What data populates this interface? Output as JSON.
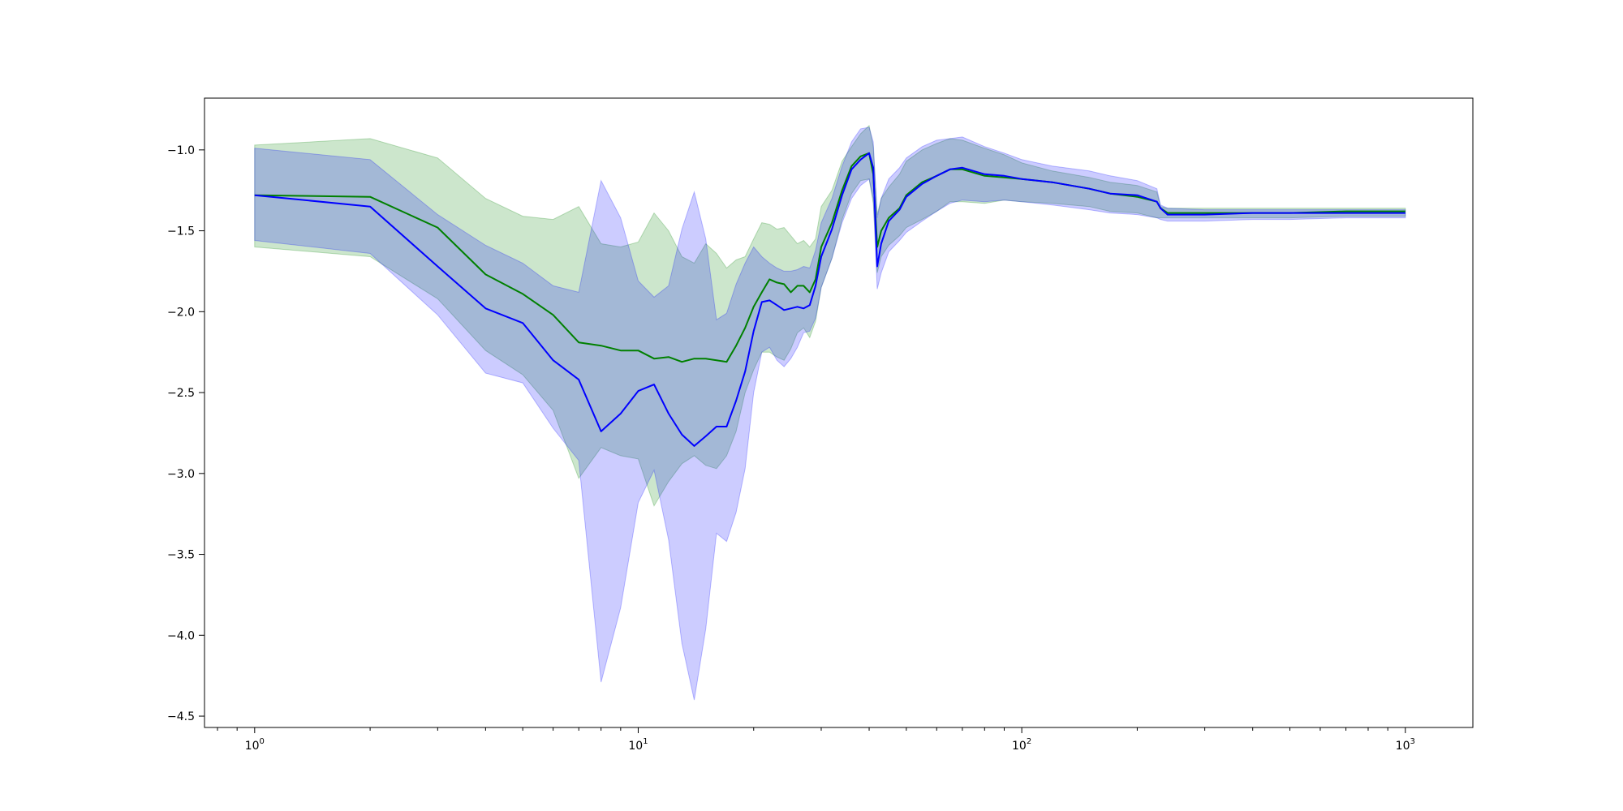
{
  "chart_data": {
    "type": "line",
    "x_scale": "log",
    "xlim": [
      0.74,
      1500
    ],
    "ylim": [
      -4.57,
      -0.68
    ],
    "grid": false,
    "title": "",
    "xlabel": "",
    "ylabel": "",
    "x_tick_labels": [
      {
        "value": 1,
        "base": "10",
        "exp": "0"
      },
      {
        "value": 10,
        "base": "10",
        "exp": "1"
      },
      {
        "value": 100,
        "base": "10",
        "exp": "2"
      },
      {
        "value": 1000,
        "base": "10",
        "exp": "3"
      }
    ],
    "y_tick_labels": [
      {
        "value": -1.0,
        "label": "−1.0"
      },
      {
        "value": -1.5,
        "label": "−1.5"
      },
      {
        "value": -2.0,
        "label": "−2.0"
      },
      {
        "value": -2.5,
        "label": "−2.5"
      },
      {
        "value": -3.0,
        "label": "−3.0"
      },
      {
        "value": -3.5,
        "label": "−3.5"
      },
      {
        "value": -4.0,
        "label": "−4.0"
      },
      {
        "value": -4.5,
        "label": "−4.5"
      }
    ],
    "series": [
      {
        "color": "#008000",
        "band_color": "#008000",
        "band_opacity": 0.2,
        "x": [
          1,
          2,
          3,
          4,
          5,
          6,
          7,
          8,
          9,
          10,
          11,
          12,
          13,
          14,
          15,
          16,
          17,
          18,
          19,
          20,
          21,
          22,
          23,
          24,
          25,
          26,
          27,
          28,
          29,
          30,
          32,
          34,
          36,
          38,
          40,
          41,
          42,
          43,
          45,
          48,
          50,
          55,
          60,
          65,
          70,
          80,
          90,
          100,
          120,
          150,
          170,
          200,
          225,
          230,
          240,
          300,
          400,
          500,
          700,
          1000
        ],
        "y": [
          -1.28,
          -1.29,
          -1.48,
          -1.77,
          -1.89,
          -2.02,
          -2.19,
          -2.21,
          -2.24,
          -2.24,
          -2.29,
          -2.28,
          -2.31,
          -2.29,
          -2.29,
          -2.3,
          -2.31,
          -2.21,
          -2.1,
          -1.97,
          -1.88,
          -1.8,
          -1.82,
          -1.83,
          -1.88,
          -1.84,
          -1.84,
          -1.88,
          -1.8,
          -1.6,
          -1.45,
          -1.25,
          -1.1,
          -1.04,
          -1.02,
          -1.15,
          -1.6,
          -1.5,
          -1.42,
          -1.36,
          -1.28,
          -1.2,
          -1.16,
          -1.12,
          -1.12,
          -1.16,
          -1.17,
          -1.18,
          -1.2,
          -1.24,
          -1.27,
          -1.29,
          -1.32,
          -1.36,
          -1.39,
          -1.39,
          -1.39,
          -1.39,
          -1.38,
          -1.38
        ],
        "upper": [
          -0.97,
          -0.93,
          -1.05,
          -1.3,
          -1.41,
          -1.43,
          -1.35,
          -1.58,
          -1.6,
          -1.57,
          -1.39,
          -1.5,
          -1.66,
          -1.7,
          -1.58,
          -1.64,
          -1.73,
          -1.68,
          -1.66,
          -1.55,
          -1.45,
          -1.46,
          -1.49,
          -1.48,
          -1.53,
          -1.58,
          -1.56,
          -1.6,
          -1.55,
          -1.35,
          -1.25,
          -1.07,
          -0.98,
          -0.9,
          -0.85,
          -0.98,
          -1.4,
          -1.3,
          -1.23,
          -1.15,
          -1.07,
          -1.0,
          -0.96,
          -0.93,
          -0.94,
          -0.99,
          -1.03,
          -1.08,
          -1.13,
          -1.17,
          -1.2,
          -1.22,
          -1.26,
          -1.35,
          -1.36,
          -1.36,
          -1.36,
          -1.36,
          -1.36,
          -1.36
        ],
        "lower": [
          -1.6,
          -1.66,
          -1.92,
          -2.24,
          -2.39,
          -2.61,
          -3.03,
          -2.84,
          -2.89,
          -2.91,
          -3.2,
          -3.05,
          -2.94,
          -2.89,
          -2.95,
          -2.97,
          -2.89,
          -2.74,
          -2.5,
          -2.36,
          -2.25,
          -2.25,
          -2.28,
          -2.3,
          -2.23,
          -2.13,
          -2.1,
          -2.16,
          -2.06,
          -1.85,
          -1.67,
          -1.43,
          -1.27,
          -1.19,
          -1.18,
          -1.33,
          -1.76,
          -1.66,
          -1.59,
          -1.53,
          -1.48,
          -1.43,
          -1.38,
          -1.32,
          -1.32,
          -1.33,
          -1.31,
          -1.32,
          -1.33,
          -1.35,
          -1.38,
          -1.39,
          -1.42,
          -1.42,
          -1.42,
          -1.42,
          -1.42,
          -1.42,
          -1.41,
          -1.41
        ]
      },
      {
        "color": "#0000ff",
        "band_color": "#0000ff",
        "band_opacity": 0.2,
        "x": [
          1,
          2,
          3,
          4,
          5,
          6,
          7,
          8,
          9,
          10,
          11,
          12,
          13,
          14,
          15,
          16,
          17,
          18,
          19,
          20,
          21,
          22,
          23,
          24,
          25,
          26,
          27,
          28,
          29,
          30,
          32,
          34,
          36,
          38,
          40,
          41,
          42,
          43,
          45,
          48,
          50,
          55,
          60,
          65,
          70,
          80,
          90,
          100,
          120,
          150,
          170,
          200,
          225,
          230,
          240,
          300,
          400,
          500,
          700,
          1000
        ],
        "y": [
          -1.28,
          -1.35,
          -1.72,
          -1.98,
          -2.07,
          -2.3,
          -2.42,
          -2.74,
          -2.63,
          -2.49,
          -2.45,
          -2.63,
          -2.76,
          -2.83,
          -2.77,
          -2.71,
          -2.71,
          -2.55,
          -2.37,
          -2.12,
          -1.94,
          -1.93,
          -1.96,
          -1.99,
          -1.98,
          -1.97,
          -1.98,
          -1.96,
          -1.84,
          -1.66,
          -1.49,
          -1.28,
          -1.12,
          -1.06,
          -1.02,
          -1.11,
          -1.72,
          -1.58,
          -1.44,
          -1.37,
          -1.29,
          -1.21,
          -1.16,
          -1.12,
          -1.11,
          -1.15,
          -1.16,
          -1.18,
          -1.2,
          -1.24,
          -1.27,
          -1.28,
          -1.32,
          -1.36,
          -1.4,
          -1.4,
          -1.39,
          -1.39,
          -1.39,
          -1.39
        ],
        "upper": [
          -0.99,
          -1.06,
          -1.4,
          -1.59,
          -1.7,
          -1.84,
          -1.88,
          -1.19,
          -1.42,
          -1.81,
          -1.91,
          -1.84,
          -1.49,
          -1.26,
          -1.55,
          -2.05,
          -2.01,
          -1.83,
          -1.7,
          -1.6,
          -1.66,
          -1.7,
          -1.73,
          -1.75,
          -1.75,
          -1.74,
          -1.72,
          -1.73,
          -1.62,
          -1.45,
          -1.3,
          -1.1,
          -0.95,
          -0.87,
          -0.86,
          -0.95,
          -1.42,
          -1.3,
          -1.18,
          -1.11,
          -1.05,
          -0.98,
          -0.94,
          -0.93,
          -0.92,
          -0.98,
          -1.02,
          -1.06,
          -1.1,
          -1.13,
          -1.16,
          -1.19,
          -1.24,
          -1.34,
          -1.36,
          -1.37,
          -1.37,
          -1.37,
          -1.37,
          -1.37
        ],
        "lower": [
          -1.56,
          -1.64,
          -2.02,
          -2.38,
          -2.44,
          -2.72,
          -2.92,
          -4.29,
          -3.83,
          -3.18,
          -2.98,
          -3.41,
          -4.05,
          -4.4,
          -3.96,
          -3.37,
          -3.42,
          -3.24,
          -2.97,
          -2.5,
          -2.25,
          -2.22,
          -2.3,
          -2.34,
          -2.29,
          -2.22,
          -2.13,
          -2.12,
          -2.04,
          -1.85,
          -1.67,
          -1.45,
          -1.3,
          -1.22,
          -1.18,
          -1.3,
          -1.86,
          -1.76,
          -1.63,
          -1.56,
          -1.51,
          -1.44,
          -1.38,
          -1.33,
          -1.31,
          -1.32,
          -1.31,
          -1.32,
          -1.34,
          -1.37,
          -1.39,
          -1.4,
          -1.42,
          -1.43,
          -1.44,
          -1.44,
          -1.43,
          -1.43,
          -1.42,
          -1.42
        ]
      }
    ]
  }
}
